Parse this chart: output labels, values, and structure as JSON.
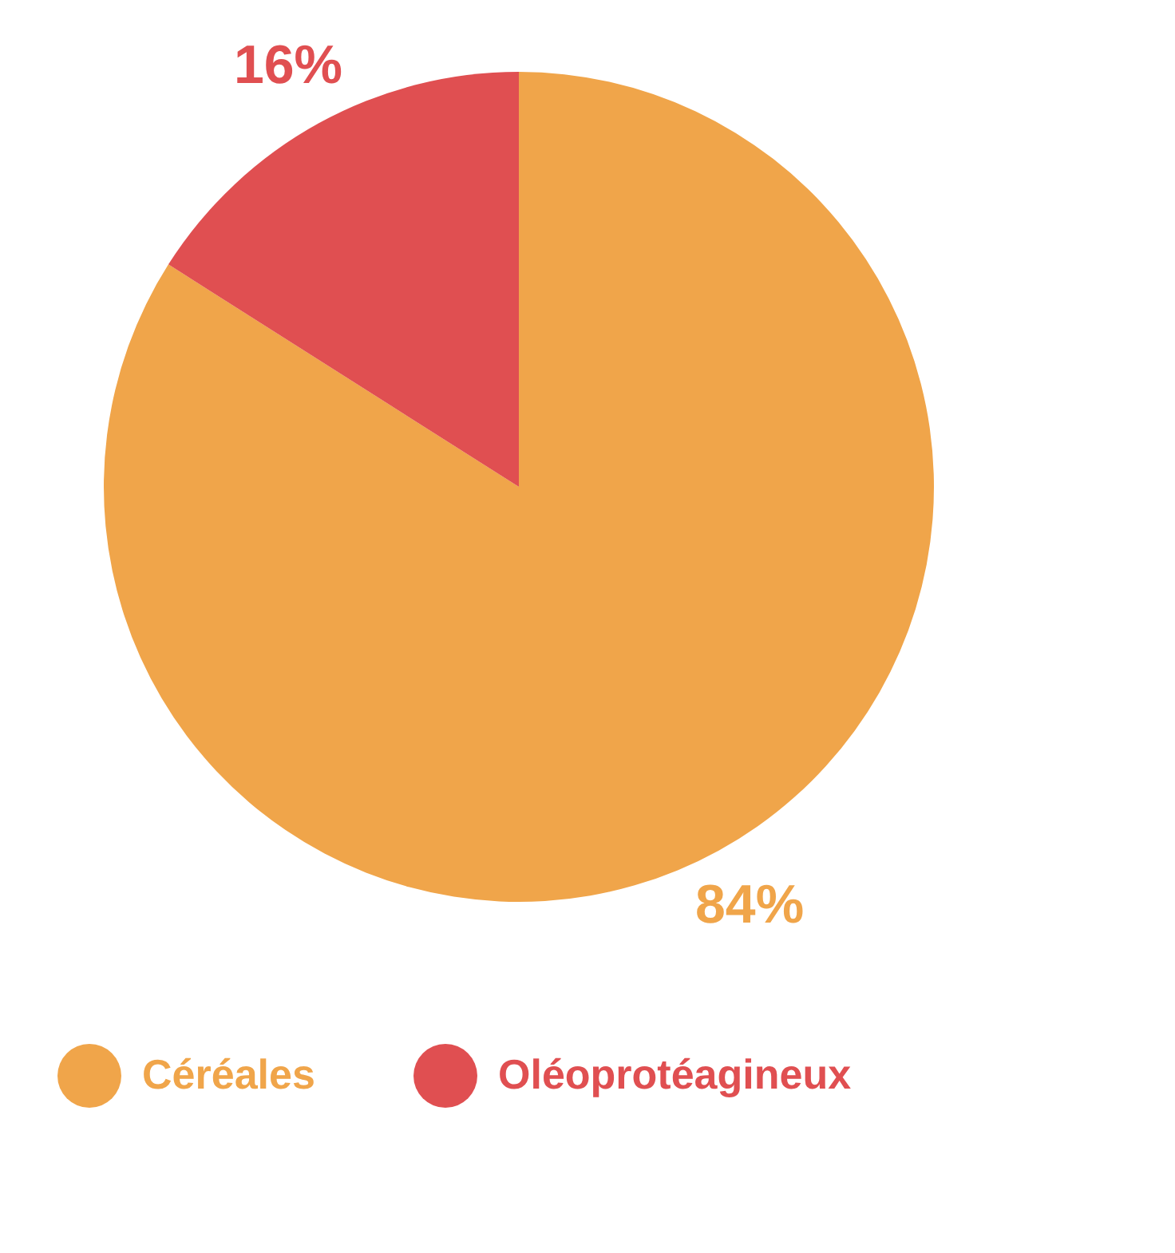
{
  "chart_data": {
    "type": "pie",
    "categories": [
      "Céréales",
      "Oléoprotéagineux"
    ],
    "values": [
      84,
      16
    ],
    "colors": [
      "#f0a54a",
      "#e04f51"
    ],
    "value_labels": [
      "84%",
      "16%"
    ],
    "legend": "bottom"
  }
}
